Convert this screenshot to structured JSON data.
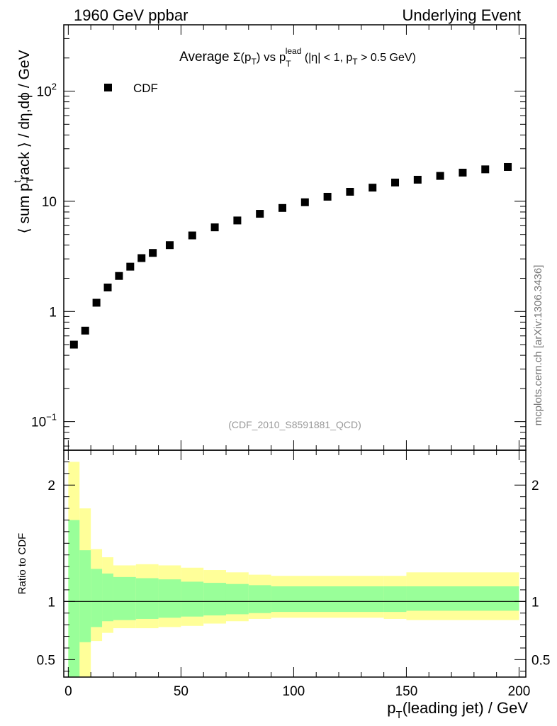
{
  "header": {
    "left": "1960 GeV ppbar",
    "right": "Underlying Event"
  },
  "watermark": {
    "side": "mcplots.cern.ch [arXiv:1306.3436]",
    "analysis": "(CDF_2010_S8591881_QCD)"
  },
  "chart_data": [
    {
      "type": "scatter",
      "title_parts": {
        "prefix": "Average ",
        "sigma": "Σ(p",
        "sub_T": "T",
        "after_sigma": ") vs p",
        "sup_lead": "lead",
        "suffix_a": " (|η| < 1, p",
        "suffix_b": " > 0.5 GeV)"
      },
      "ylabel_parts": {
        "a": "⟨ sum p",
        "sub": "T",
        "sup": "t",
        "b": "rack ⟩ / dη,dϕ / GeV"
      },
      "yscale": "log",
      "xlim": [
        -2,
        203
      ],
      "ylim": [
        0.055,
        400
      ],
      "yticks_major": [
        {
          "value": 0.1,
          "base": "10",
          "exp": "−1"
        },
        {
          "value": 1,
          "base": "1",
          "exp": ""
        },
        {
          "value": 10,
          "base": "10",
          "exp": ""
        },
        {
          "value": 100,
          "base": "10",
          "exp": "2"
        }
      ],
      "legend": {
        "entry": "CDF",
        "position": "top-left"
      },
      "series": [
        {
          "name": "CDF",
          "marker": "square",
          "color": "#000000",
          "x": [
            2.5,
            7.5,
            12.5,
            17.5,
            22.5,
            27.5,
            32.5,
            37.5,
            45,
            55,
            65,
            75,
            85,
            95,
            105,
            115,
            125,
            135,
            145,
            155,
            165,
            175,
            185,
            195
          ],
          "y": [
            0.5,
            0.67,
            1.2,
            1.65,
            2.1,
            2.55,
            3.05,
            3.4,
            4.0,
            4.9,
            5.8,
            6.7,
            7.7,
            8.7,
            9.8,
            11.0,
            12.2,
            13.3,
            14.8,
            15.7,
            17.0,
            18.2,
            19.5,
            20.5
          ]
        }
      ]
    },
    {
      "type": "area",
      "ylabel": "Ratio to CDF",
      "xlabel_parts": {
        "a": "p",
        "sub": "T",
        "b": "(leading jet) / GeV"
      },
      "xlim": [
        -2,
        203
      ],
      "ylim": [
        0.35,
        2.3
      ],
      "xticks": [
        "0",
        "50",
        "100",
        "150",
        "200"
      ],
      "xtick_values": [
        0,
        50,
        100,
        150,
        200
      ],
      "yticks": [
        "0.5",
        "1",
        "2"
      ],
      "ytick_values": [
        0.5,
        1,
        2
      ],
      "reference_line": 1,
      "colors": {
        "stat": "#99ff99",
        "total": "#ffff99"
      },
      "bins": [
        {
          "lo": 0,
          "hi": 5,
          "stat": [
            0.0,
            1.7
          ],
          "total": [
            0.0,
            2.2
          ]
        },
        {
          "lo": 5,
          "hi": 10,
          "stat": [
            0.65,
            1.44
          ],
          "total": [
            0.2,
            1.8
          ]
        },
        {
          "lo": 10,
          "hi": 15,
          "stat": [
            0.78,
            1.28
          ],
          "total": [
            0.66,
            1.45
          ]
        },
        {
          "lo": 15,
          "hi": 20,
          "stat": [
            0.83,
            1.24
          ],
          "total": [
            0.73,
            1.38
          ]
        },
        {
          "lo": 20,
          "hi": 30,
          "stat": [
            0.84,
            1.21
          ],
          "total": [
            0.77,
            1.31
          ]
        },
        {
          "lo": 30,
          "hi": 40,
          "stat": [
            0.85,
            1.2
          ],
          "total": [
            0.77,
            1.32
          ]
        },
        {
          "lo": 40,
          "hi": 50,
          "stat": [
            0.86,
            1.19
          ],
          "total": [
            0.78,
            1.31
          ]
        },
        {
          "lo": 50,
          "hi": 60,
          "stat": [
            0.87,
            1.17
          ],
          "total": [
            0.79,
            1.29
          ]
        },
        {
          "lo": 60,
          "hi": 70,
          "stat": [
            0.88,
            1.16
          ],
          "total": [
            0.81,
            1.27
          ]
        },
        {
          "lo": 70,
          "hi": 80,
          "stat": [
            0.89,
            1.15
          ],
          "total": [
            0.83,
            1.25
          ]
        },
        {
          "lo": 80,
          "hi": 90,
          "stat": [
            0.9,
            1.14
          ],
          "total": [
            0.85,
            1.23
          ]
        },
        {
          "lo": 90,
          "hi": 140,
          "stat": [
            0.91,
            1.13
          ],
          "total": [
            0.86,
            1.22
          ]
        },
        {
          "lo": 140,
          "hi": 150,
          "stat": [
            0.91,
            1.13
          ],
          "total": [
            0.85,
            1.22
          ]
        },
        {
          "lo": 150,
          "hi": 200,
          "stat": [
            0.92,
            1.13
          ],
          "total": [
            0.84,
            1.25
          ]
        }
      ]
    }
  ]
}
